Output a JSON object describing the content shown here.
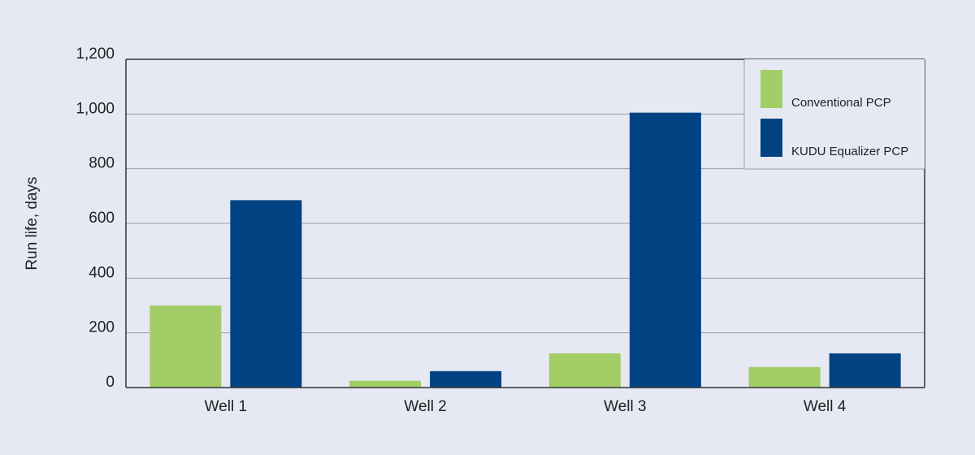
{
  "chart_data": {
    "type": "bar",
    "y_label": "Run life, days",
    "categories": [
      "Well 1",
      "Well 2",
      "Well 3",
      "Well 4"
    ],
    "series": [
      {
        "name": "Conventional PCP",
        "color": "#a3cd66",
        "values": [
          300,
          25,
          125,
          75
        ]
      },
      {
        "name": "KUDU Equalizer PCP",
        "color": "#004282",
        "values": [
          685,
          60,
          1005,
          125
        ]
      }
    ],
    "ylim": [
      0,
      1200
    ],
    "yticks": [
      0,
      200,
      400,
      600,
      800,
      {
        "value": 1000,
        "label": "1,000"
      },
      {
        "value": 1200,
        "label": "1,200"
      }
    ],
    "grid": true,
    "legend": "top-right"
  }
}
